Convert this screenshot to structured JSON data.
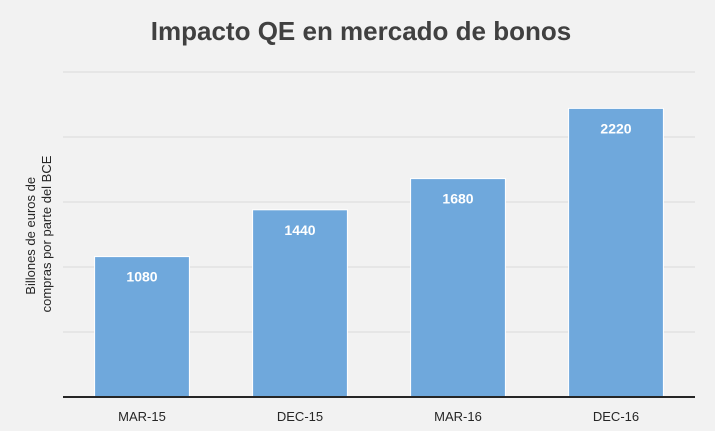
{
  "chart_data": {
    "type": "bar",
    "title": "Impacto QE en mercado de bonos",
    "xlabel": "",
    "ylabel": "Billones de euros de compras por parte del BCE",
    "ylabel_lines": [
      "Billones de euros de",
      "compras por parte del BCE"
    ],
    "categories": [
      "MAR-15",
      "DEC-15",
      "MAR-16",
      "DEC-16"
    ],
    "values": [
      1080,
      1440,
      1680,
      2220
    ],
    "ylim": [
      0,
      2500
    ],
    "grid": true,
    "legend": "none",
    "data_labels": true
  },
  "colors": {
    "background": "#f2f2f2",
    "bar_fill": "#6fa8dc",
    "bar_edge": "#ffffff",
    "grid": "#d9d9d9",
    "axis": "#262626",
    "title": "#404040",
    "label": "#262626",
    "data_label": "#ffffff"
  }
}
